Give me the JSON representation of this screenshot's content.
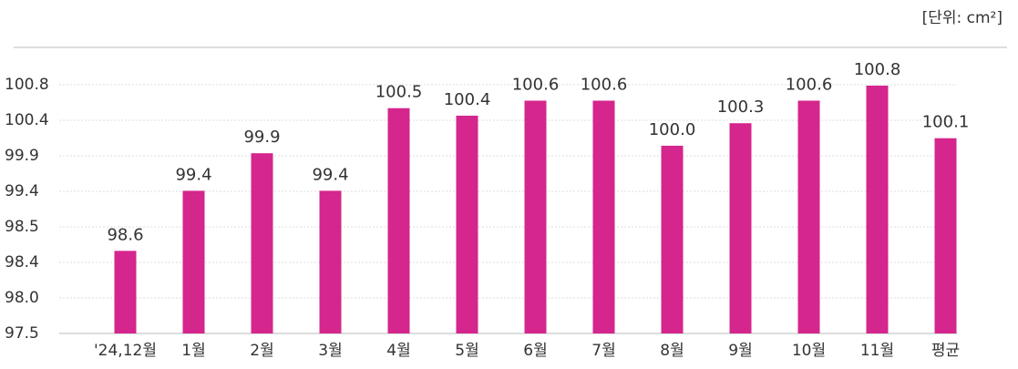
{
  "chart_data": {
    "type": "bar",
    "unit": "[단위: cm²]",
    "categories": [
      "'24,12월",
      "1월",
      "2월",
      "3월",
      "4월",
      "5월",
      "6월",
      "7월",
      "8월",
      "9월",
      "10월",
      "11월",
      "평균"
    ],
    "values": [
      98.6,
      99.4,
      99.9,
      99.4,
      100.5,
      100.4,
      100.6,
      100.6,
      100.0,
      100.3,
      100.6,
      100.8,
      100.1
    ],
    "value_labels": [
      "98.6",
      "99.4",
      "99.9",
      "99.4",
      "100.5",
      "100.4",
      "100.6",
      "100.6",
      "100.0",
      "100.3",
      "100.6",
      "100.8",
      "100.1"
    ],
    "color": "#d4268c",
    "ylim": [
      97.5,
      100.8
    ],
    "yticks": [
      97.5,
      {
        "value": 98.0,
        "label": "98.0"
      },
      98.4,
      98.5,
      99.4,
      99.9,
      100.4,
      100.8
    ],
    "grid": true
  }
}
